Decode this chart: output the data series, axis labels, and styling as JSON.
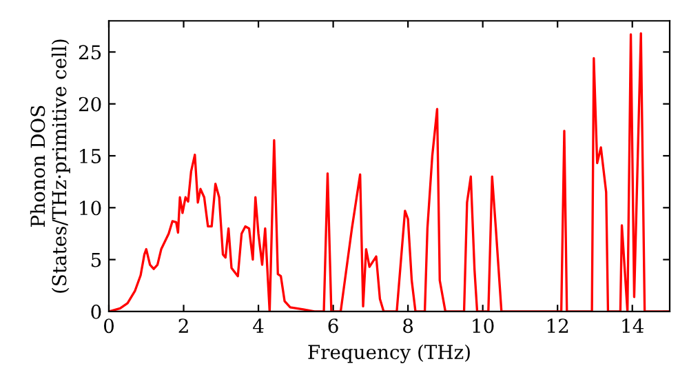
{
  "chart_data": {
    "type": "line",
    "xlabel": "Frequency (THz)",
    "ylabel": "Phonon DOS\n(States/THz·primitive cell)",
    "series": [
      {
        "color": "#ff0000",
        "x": [
          0,
          0.3,
          0.5,
          0.7,
          0.85,
          0.95,
          1.0,
          1.1,
          1.2,
          1.3,
          1.4,
          1.6,
          1.7,
          1.8,
          1.85,
          1.9,
          1.97,
          2.05,
          2.12,
          2.2,
          2.3,
          2.38,
          2.45,
          2.55,
          2.65,
          2.75,
          2.85,
          2.95,
          3.05,
          3.12,
          3.2,
          3.28,
          3.45,
          3.55,
          3.65,
          3.75,
          3.85,
          3.92,
          4.0,
          4.1,
          4.18,
          4.3,
          4.42,
          4.52,
          4.6,
          4.7,
          4.85,
          5.2,
          5.5,
          5.75,
          5.85,
          5.95,
          6.2,
          6.5,
          6.72,
          6.8,
          6.88,
          6.97,
          7.15,
          7.25,
          7.35,
          7.7,
          7.92,
          8.0,
          8.1,
          8.2,
          8.45,
          8.52,
          8.65,
          8.78,
          8.85,
          9.0,
          9.5,
          9.58,
          9.68,
          9.78,
          9.85,
          10.15,
          10.25,
          10.35,
          10.5,
          12.1,
          12.18,
          12.25,
          12.92,
          12.97,
          13.06,
          13.16,
          13.3,
          13.35,
          13.68,
          13.72,
          13.87,
          13.96,
          14.05,
          14.23,
          14.33,
          15
        ],
        "values": [
          0,
          0.3,
          0.8,
          2,
          3.5,
          5.5,
          6,
          4.5,
          4.1,
          4.5,
          6,
          7.5,
          8.7,
          8.6,
          7.6,
          11,
          9.5,
          11,
          10.6,
          13.5,
          15.1,
          10.5,
          11.8,
          11,
          8.2,
          8.2,
          12.3,
          11,
          5.5,
          5.2,
          8,
          4.2,
          3.4,
          7.5,
          8.2,
          8,
          5,
          11,
          7.5,
          4.5,
          8,
          0,
          16.5,
          3.6,
          3.4,
          1,
          0.4,
          0.2,
          0,
          0,
          13.3,
          0,
          0,
          8,
          13.2,
          0.5,
          6,
          4.3,
          5.3,
          1.2,
          0,
          0,
          9.7,
          8.9,
          3,
          0,
          0,
          8,
          15,
          19.5,
          3,
          0,
          0,
          10.5,
          13,
          4,
          0,
          0,
          13,
          8,
          0,
          0,
          17.4,
          0,
          0,
          24.4,
          14.3,
          15.8,
          11.5,
          0,
          0,
          8.3,
          0,
          26.7,
          1.4,
          26.8,
          0,
          0
        ]
      }
    ],
    "xlim": [
      0,
      15
    ],
    "ylim": [
      0,
      28
    ],
    "xticks": [
      0,
      2,
      4,
      6,
      8,
      10,
      12,
      14
    ],
    "yticks": [
      0,
      5,
      10,
      15,
      20,
      25
    ],
    "grid": false,
    "legend": false,
    "marker": "none",
    "line_style": "solid"
  }
}
